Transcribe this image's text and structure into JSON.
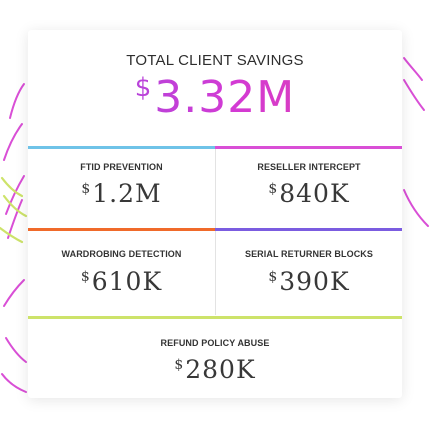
{
  "total": {
    "label": "TOTAL CLIENT SAVINGS",
    "currency": "$",
    "value": "3.32M"
  },
  "cells": [
    {
      "label": "FTID PREVENTION",
      "currency": "$",
      "value": "1.2M"
    },
    {
      "label": "RESELLER INTERCEPT",
      "currency": "$",
      "value": "840K"
    },
    {
      "label": "WARDROBING DETECTION",
      "currency": "$",
      "value": "610K"
    },
    {
      "label": "SERIAL RETURNER BLOCKS",
      "currency": "$",
      "value": "390K"
    },
    {
      "label": "REFUND POLICY ABUSE",
      "currency": "$",
      "value": "280K"
    }
  ],
  "colors": {
    "accent_blue": "#6fc3e8",
    "accent_pink": "#d94fd6",
    "accent_orange": "#f06a2a",
    "accent_purple": "#7b5ce0",
    "accent_lime": "#cde36a",
    "total_gradient_start": "#9a4de0",
    "total_gradient_end": "#e23fa8"
  }
}
